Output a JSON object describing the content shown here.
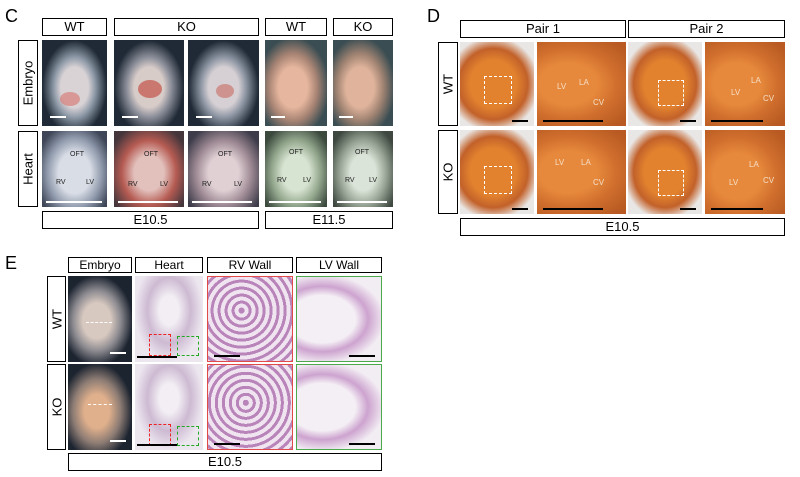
{
  "panel_c": {
    "letter": "C",
    "cols": [
      "WT",
      "KO",
      "WT",
      "KO"
    ],
    "rows": [
      "Embryo",
      "Heart"
    ],
    "stages": [
      "E10.5",
      "E11.5"
    ],
    "heart_labels": {
      "oft": "OFT",
      "rv": "RV",
      "lv": "LV"
    }
  },
  "panel_d": {
    "letter": "D",
    "cols": [
      "Pair 1",
      "Pair 2"
    ],
    "rows": [
      "WT",
      "KO"
    ],
    "stage": "E10.5",
    "labels": {
      "lv": "LV",
      "la": "LA",
      "cv": "CV"
    }
  },
  "panel_e": {
    "letter": "E",
    "cols": [
      "Embryo",
      "Heart",
      "RV Wall",
      "LV Wall"
    ],
    "rows": [
      "WT",
      "KO"
    ],
    "stage": "E10.5"
  },
  "colors": {
    "embryo_bg": "#1f2a36",
    "stain_bg": "#c8541e",
    "he_bg": "#ece4ee",
    "red_box": "#e22222",
    "green_box": "#22aa22"
  }
}
